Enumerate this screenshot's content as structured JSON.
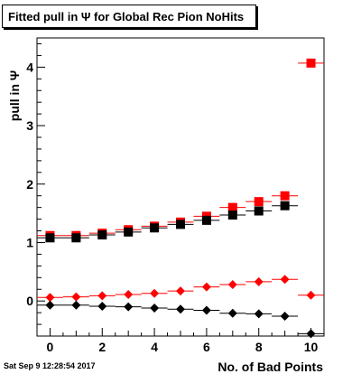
{
  "title": "Fitted pull in Ψ  for Global Rec Pion NoHits",
  "timestamp": "Sat Sep  9 12:28:54 2017",
  "chart_data": {
    "type": "scatter",
    "xlabel": "No. of Bad Points",
    "ylabel": "pull in Ψ",
    "xlim": [
      -0.5,
      10.5
    ],
    "ylim": [
      -0.6,
      4.5
    ],
    "xticks": [
      0,
      2,
      4,
      6,
      8,
      10
    ],
    "yticks": [
      0,
      1,
      2,
      3,
      4
    ],
    "grid": false,
    "series": [
      {
        "marker": "square",
        "color": "#ff0000",
        "x": [
          0,
          1,
          2,
          3,
          4,
          5,
          6,
          7,
          8,
          9,
          10
        ],
        "y": [
          1.12,
          1.12,
          1.16,
          1.22,
          1.28,
          1.35,
          1.45,
          1.6,
          1.7,
          1.8,
          4.07
        ]
      },
      {
        "marker": "square",
        "color": "#000000",
        "x": [
          0,
          1,
          2,
          3,
          4,
          5,
          6,
          7,
          8,
          9
        ],
        "y": [
          1.08,
          1.08,
          1.13,
          1.18,
          1.25,
          1.31,
          1.38,
          1.47,
          1.54,
          1.63
        ]
      },
      {
        "marker": "diamond",
        "color": "#ff0000",
        "x": [
          0,
          1,
          2,
          3,
          4,
          5,
          6,
          7,
          8,
          9,
          10
        ],
        "y": [
          0.06,
          0.07,
          0.09,
          0.11,
          0.13,
          0.17,
          0.24,
          0.28,
          0.33,
          0.37,
          0.1
        ]
      },
      {
        "marker": "diamond",
        "color": "#000000",
        "x": [
          0,
          1,
          2,
          3,
          4,
          5,
          6,
          7,
          8,
          9,
          10
        ],
        "y": [
          -0.07,
          -0.07,
          -0.09,
          -0.1,
          -0.12,
          -0.14,
          -0.16,
          -0.21,
          -0.22,
          -0.26,
          -0.56
        ]
      }
    ]
  }
}
